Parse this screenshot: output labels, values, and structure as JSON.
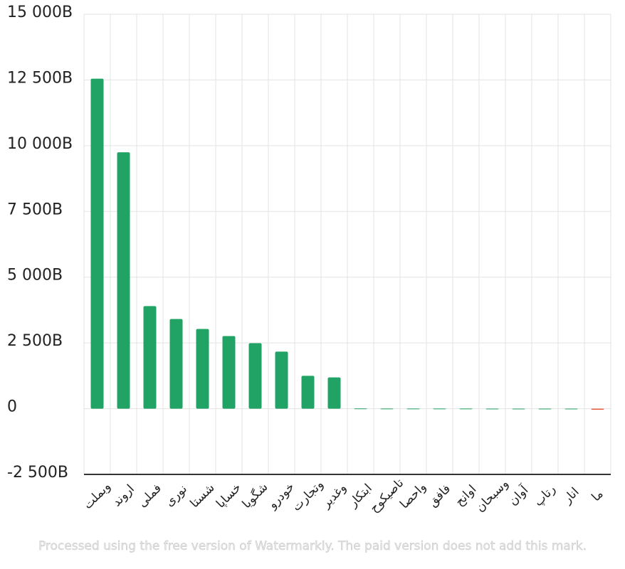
{
  "chart_data": {
    "type": "bar",
    "categories": [
      "وبملت",
      "اروند",
      "فملی",
      "نوری",
      "شستا",
      "خساپا",
      "شگویا",
      "خودرو",
      "وتجارت",
      "وغدیر",
      "ابتکار",
      "تاصیکوح",
      "واحصا",
      "فافق",
      "اوانح",
      "وسبحان",
      "آوان",
      "رتاپ",
      "انار",
      "ما"
    ],
    "values": [
      12550,
      9750,
      3900,
      3410,
      3030,
      2760,
      2490,
      2170,
      1250,
      1190,
      8,
      6,
      5,
      4,
      4,
      3,
      3,
      2,
      2,
      -40
    ],
    "color": "#21a366",
    "negative_color": "#e8522f",
    "ylim": [
      -2500,
      15000
    ],
    "yticks": [
      {
        "value": -2500,
        "label": "-2 500B"
      },
      0,
      {
        "value": 2500,
        "label": "2 500B"
      },
      {
        "value": 5000,
        "label": "5 000B"
      },
      {
        "value": 7500,
        "label": "7 500B"
      },
      {
        "value": 10000,
        "label": "10 000B"
      },
      {
        "value": 12500,
        "label": "12 500B"
      },
      {
        "value": 15000,
        "label": "15 000B"
      }
    ],
    "grid": true
  },
  "watermark": "Processed using the free version of Watermarkly. The paid version does not add this mark."
}
